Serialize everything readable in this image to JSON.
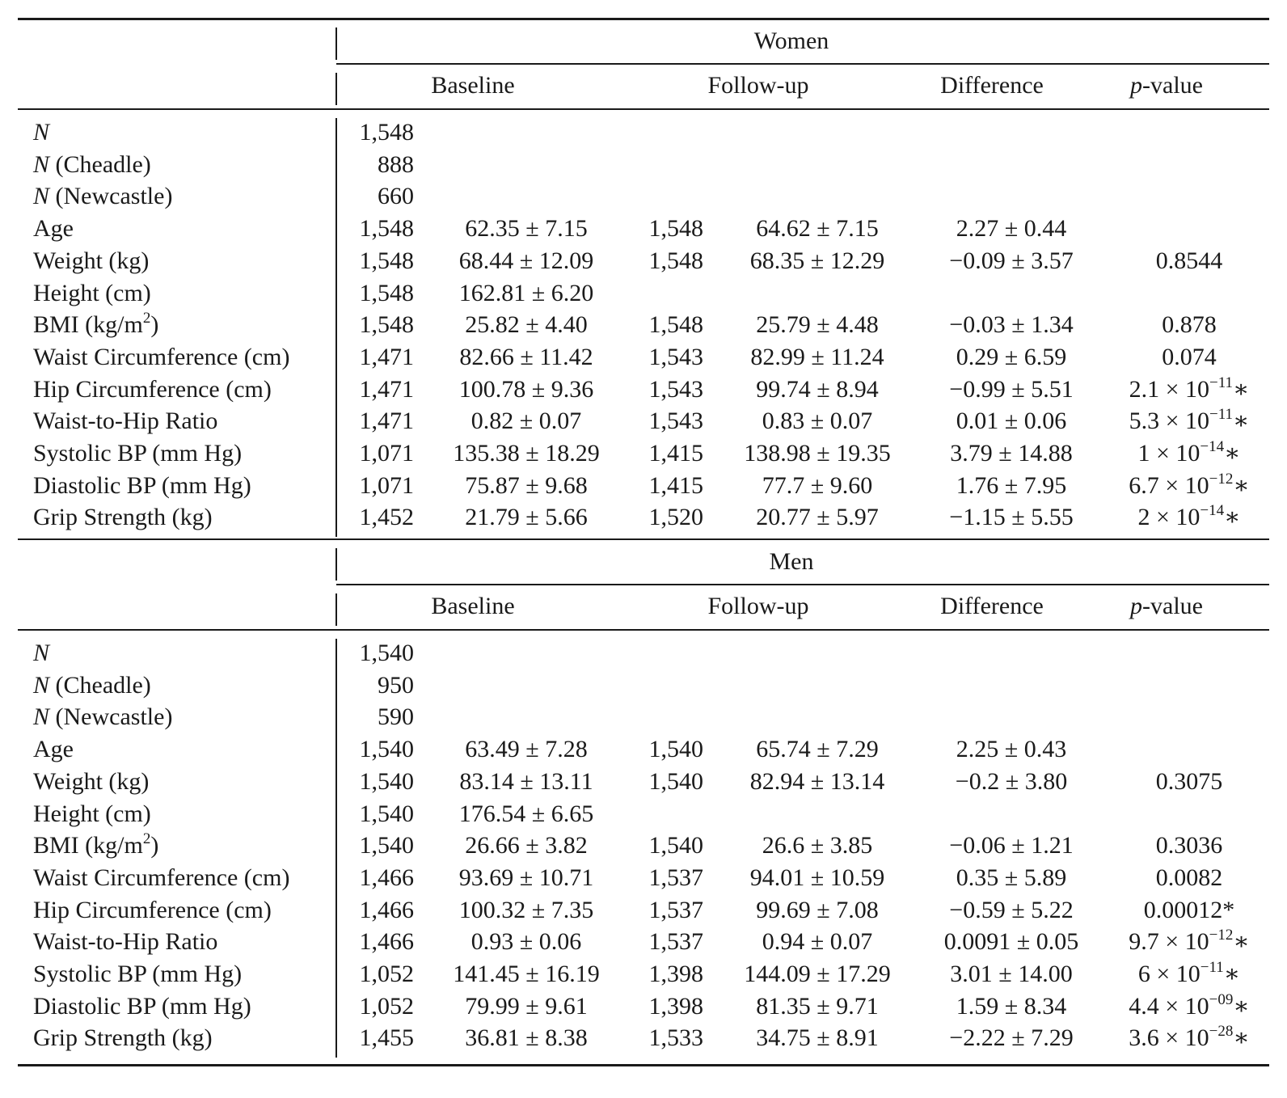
{
  "columns": {
    "baseline": "Baseline",
    "followup": "Follow-up",
    "difference": "Difference",
    "pvalue_italic": "p",
    "pvalue_rest": "-value"
  },
  "groups": [
    {
      "title": "Women",
      "rows": [
        {
          "label_it": "N",
          "label": "",
          "n1": "1,548",
          "baseline": "",
          "n2": "",
          "followup": "",
          "difference": "",
          "p_mant": "",
          "p_exp": "",
          "p_star": ""
        },
        {
          "label_it": "N",
          "label": " (Cheadle)",
          "n1": "888",
          "baseline": "",
          "n2": "",
          "followup": "",
          "difference": "",
          "p_mant": "",
          "p_exp": "",
          "p_star": ""
        },
        {
          "label_it": "N",
          "label": " (Newcastle)",
          "n1": "660",
          "baseline": "",
          "n2": "",
          "followup": "",
          "difference": "",
          "p_mant": "",
          "p_exp": "",
          "p_star": ""
        },
        {
          "label_it": "",
          "label": "Age",
          "n1": "1,548",
          "baseline": "62.35 ± 7.15",
          "n2": "1,548",
          "followup": "64.62 ± 7.15",
          "difference": "2.27 ± 0.44",
          "p_mant": "",
          "p_exp": "",
          "p_star": ""
        },
        {
          "label_it": "",
          "label": "Weight (kg)",
          "n1": "1,548",
          "baseline": "68.44 ± 12.09",
          "n2": "1,548",
          "followup": "68.35 ± 12.29",
          "difference": "−0.09 ± 3.57",
          "p_mant": "0.8544",
          "p_exp": "",
          "p_star": ""
        },
        {
          "label_it": "",
          "label": "Height (cm)",
          "n1": "1,548",
          "baseline": "162.81 ± 6.20",
          "n2": "",
          "followup": "",
          "difference": "",
          "p_mant": "",
          "p_exp": "",
          "p_star": ""
        },
        {
          "label_it": "",
          "label": "BMI (kg/m",
          "label_sup": "2",
          "label_end": ")",
          "n1": "1,548",
          "baseline": "25.82 ± 4.40",
          "n2": "1,548",
          "followup": "25.79 ± 4.48",
          "difference": "−0.03 ± 1.34",
          "p_mant": "0.878",
          "p_exp": "",
          "p_star": ""
        },
        {
          "label_it": "",
          "label": "Waist Circumference (cm)",
          "n1": "1,471",
          "baseline": "82.66 ± 11.42",
          "n2": "1,543",
          "followup": "82.99 ± 11.24",
          "difference": "0.29 ± 6.59",
          "p_mant": "0.074",
          "p_exp": "",
          "p_star": ""
        },
        {
          "label_it": "",
          "label": "Hip Circumference (cm)",
          "n1": "1,471",
          "baseline": "100.78 ± 9.36",
          "n2": "1,543",
          "followup": "99.74 ± 8.94",
          "difference": "−0.99 ± 5.51",
          "p_mant": "2.1 × 10",
          "p_exp": "−11",
          "p_star": "∗"
        },
        {
          "label_it": "",
          "label": "Waist-to-Hip Ratio",
          "n1": "1,471",
          "baseline": "0.82 ± 0.07",
          "n2": "1,543",
          "followup": "0.83 ± 0.07",
          "difference": "0.01 ± 0.06",
          "p_mant": "5.3 × 10",
          "p_exp": "−11",
          "p_star": "∗"
        },
        {
          "label_it": "",
          "label": "Systolic BP (mm Hg)",
          "n1": "1,071",
          "baseline": "135.38 ± 18.29",
          "n2": "1,415",
          "followup": "138.98 ± 19.35",
          "difference": "3.79 ± 14.88",
          "p_mant": "1 × 10",
          "p_exp": "−14",
          "p_star": "∗"
        },
        {
          "label_it": "",
          "label": "Diastolic BP (mm Hg)",
          "n1": "1,071",
          "baseline": "75.87 ± 9.68",
          "n2": "1,415",
          "followup": "77.7 ± 9.60",
          "difference": "1.76 ± 7.95",
          "p_mant": "6.7 × 10",
          "p_exp": "−12",
          "p_star": "∗"
        },
        {
          "label_it": "",
          "label": "Grip Strength (kg)",
          "n1": "1,452",
          "baseline": "21.79 ± 5.66",
          "n2": "1,520",
          "followup": "20.77 ± 5.97",
          "difference": "−1.15 ± 5.55",
          "p_mant": "2 × 10",
          "p_exp": "−14",
          "p_star": "∗"
        }
      ]
    },
    {
      "title": "Men",
      "rows": [
        {
          "label_it": "N",
          "label": "",
          "n1": "1,540",
          "baseline": "",
          "n2": "",
          "followup": "",
          "difference": "",
          "p_mant": "",
          "p_exp": "",
          "p_star": ""
        },
        {
          "label_it": "N",
          "label": " (Cheadle)",
          "n1": "950",
          "baseline": "",
          "n2": "",
          "followup": "",
          "difference": "",
          "p_mant": "",
          "p_exp": "",
          "p_star": ""
        },
        {
          "label_it": "N",
          "label": " (Newcastle)",
          "n1": "590",
          "baseline": "",
          "n2": "",
          "followup": "",
          "difference": "",
          "p_mant": "",
          "p_exp": "",
          "p_star": ""
        },
        {
          "label_it": "",
          "label": "Age",
          "n1": "1,540",
          "baseline": "63.49 ± 7.28",
          "n2": "1,540",
          "followup": "65.74 ± 7.29",
          "difference": "2.25 ± 0.43",
          "p_mant": "",
          "p_exp": "",
          "p_star": ""
        },
        {
          "label_it": "",
          "label": "Weight (kg)",
          "n1": "1,540",
          "baseline": "83.14 ± 13.11",
          "n2": "1,540",
          "followup": "82.94 ± 13.14",
          "difference": "−0.2 ± 3.80",
          "p_mant": "0.3075",
          "p_exp": "",
          "p_star": ""
        },
        {
          "label_it": "",
          "label": "Height (cm)",
          "n1": "1,540",
          "baseline": "176.54 ± 6.65",
          "n2": "",
          "followup": "",
          "difference": "",
          "p_mant": "",
          "p_exp": "",
          "p_star": ""
        },
        {
          "label_it": "",
          "label": "BMI (kg/m",
          "label_sup": "2",
          "label_end": ")",
          "n1": "1,540",
          "baseline": "26.66 ± 3.82",
          "n2": "1,540",
          "followup": "26.6 ± 3.85",
          "difference": "−0.06 ± 1.21",
          "p_mant": "0.3036",
          "p_exp": "",
          "p_star": ""
        },
        {
          "label_it": "",
          "label": "Waist Circumference (cm)",
          "n1": "1,466",
          "baseline": "93.69 ± 10.71",
          "n2": "1,537",
          "followup": "94.01 ± 10.59",
          "difference": "0.35 ± 5.89",
          "p_mant": "0.0082",
          "p_exp": "",
          "p_star": ""
        },
        {
          "label_it": "",
          "label": "Hip Circumference (cm)",
          "n1": "1,466",
          "baseline": "100.32 ± 7.35",
          "n2": "1,537",
          "followup": "99.69 ± 7.08",
          "difference": "−0.59 ± 5.22",
          "p_mant": "0.00012*",
          "p_exp": "",
          "p_star": ""
        },
        {
          "label_it": "",
          "label": "Waist-to-Hip Ratio",
          "n1": "1,466",
          "baseline": "0.93 ± 0.06",
          "n2": "1,537",
          "followup": "0.94 ± 0.07",
          "difference": "0.0091 ± 0.05",
          "p_mant": "9.7 × 10",
          "p_exp": "−12",
          "p_star": "∗"
        },
        {
          "label_it": "",
          "label": "Systolic BP (mm Hg)",
          "n1": "1,052",
          "baseline": "141.45 ± 16.19",
          "n2": "1,398",
          "followup": "144.09 ± 17.29",
          "difference": "3.01 ± 14.00",
          "p_mant": "6 × 10",
          "p_exp": "−11",
          "p_star": "∗"
        },
        {
          "label_it": "",
          "label": "Diastolic BP (mm Hg)",
          "n1": "1,052",
          "baseline": "79.99 ± 9.61",
          "n2": "1,398",
          "followup": "81.35 ± 9.71",
          "difference": "1.59 ± 8.34",
          "p_mant": "4.4 × 10",
          "p_exp": "−09",
          "p_star": "∗"
        },
        {
          "label_it": "",
          "label": "Grip Strength (kg)",
          "n1": "1,455",
          "baseline": "36.81 ± 8.38",
          "n2": "1,533",
          "followup": "34.75 ± 8.91",
          "difference": "−2.22 ± 7.29",
          "p_mant": "3.6 × 10",
          "p_exp": "−28",
          "p_star": "∗"
        }
      ]
    }
  ]
}
